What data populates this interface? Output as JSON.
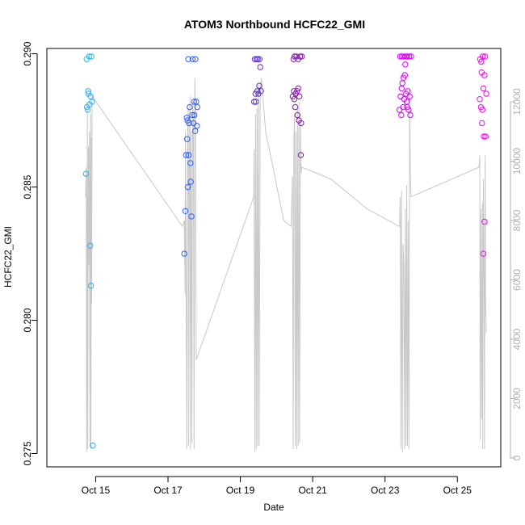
{
  "chart_data": {
    "type": "scatter",
    "title": "ATOM3 Northbound HCFC22_GMI",
    "xlabel": "Date",
    "ylabel": "HCFC22_GMI",
    "x_axis": {
      "min": 13.65,
      "max": 26.2,
      "ticks": [
        {
          "value": 15,
          "label": "Oct 15"
        },
        {
          "value": 17,
          "label": "Oct 17"
        },
        {
          "value": 19,
          "label": "Oct 19"
        },
        {
          "value": 21,
          "label": "Oct 21"
        },
        {
          "value": 23,
          "label": "Oct 23"
        },
        {
          "value": 25,
          "label": "Oct 25"
        }
      ]
    },
    "y_axis": {
      "min": 0.2745,
      "max": 0.2902,
      "ticks": [
        {
          "value": 0.275,
          "label": "0.275"
        },
        {
          "value": 0.28,
          "label": "0.280"
        },
        {
          "value": 0.285,
          "label": "0.285"
        },
        {
          "value": 0.29,
          "label": "0.290"
        }
      ]
    },
    "y2_axis": {
      "min": -300,
      "max": 13800,
      "ticks": [
        {
          "value": 0,
          "label": "0"
        },
        {
          "value": 2000,
          "label": "2000"
        },
        {
          "value": 4000,
          "label": "4000"
        },
        {
          "value": 6000,
          "label": "6000"
        },
        {
          "value": 8000,
          "label": "8000"
        },
        {
          "value": 10000,
          "label": "10000"
        },
        {
          "value": 12000,
          "label": "12000"
        }
      ]
    },
    "color_gradient": [
      "#29b6f6",
      "#2962ff",
      "#7b1fa2",
      "#d500f9",
      "#ff00ff"
    ],
    "altitude_color": "#c8c8c8",
    "flights": [
      {
        "points": [
          [
            14.73,
            0.2855
          ],
          [
            14.75,
            0.2898
          ],
          [
            14.78,
            0.2879
          ],
          [
            14.8,
            0.2885
          ],
          [
            14.82,
            0.2899
          ],
          [
            14.83,
            0.2881
          ],
          [
            14.85,
            0.2828
          ],
          [
            14.86,
            0.2884
          ],
          [
            14.87,
            0.2813
          ],
          [
            14.88,
            0.2899
          ],
          [
            14.9,
            0.2882
          ],
          [
            14.92,
            0.2753
          ],
          [
            14.76,
            0.288
          ],
          [
            14.79,
            0.2886
          ]
        ],
        "altitude": [
          [
            14.72,
            8800
          ],
          [
            14.74,
            9800
          ],
          [
            14.75,
            200
          ],
          [
            14.77,
            11800
          ],
          [
            14.78,
            300
          ],
          [
            14.8,
            10500
          ],
          [
            14.81,
            6500
          ],
          [
            14.83,
            11000
          ],
          [
            14.84,
            400
          ],
          [
            14.85,
            7200
          ],
          [
            14.86,
            11600
          ],
          [
            14.87,
            300
          ],
          [
            14.88,
            10800
          ],
          [
            14.89,
            5200
          ],
          [
            14.9,
            12200
          ]
        ]
      },
      {
        "points": [
          [
            17.45,
            0.2825
          ],
          [
            17.48,
            0.2841
          ],
          [
            17.5,
            0.2862
          ],
          [
            17.52,
            0.2876
          ],
          [
            17.53,
            0.2868
          ],
          [
            17.55,
            0.285
          ],
          [
            17.56,
            0.2898
          ],
          [
            17.58,
            0.2874
          ],
          [
            17.6,
            0.288
          ],
          [
            17.62,
            0.2859
          ],
          [
            17.63,
            0.2852
          ],
          [
            17.65,
            0.2839
          ],
          [
            17.67,
            0.2877
          ],
          [
            17.68,
            0.2898
          ],
          [
            17.7,
            0.2874
          ],
          [
            17.72,
            0.2882
          ],
          [
            17.73,
            0.2877
          ],
          [
            17.75,
            0.2871
          ],
          [
            17.76,
            0.2898
          ],
          [
            17.78,
            0.2882
          ],
          [
            17.8,
            0.2873
          ],
          [
            17.81,
            0.288
          ],
          [
            17.57,
            0.2862
          ],
          [
            17.54,
            0.2875
          ]
        ],
        "altitude": [
          [
            17.4,
            7800
          ],
          [
            17.45,
            8000
          ],
          [
            17.47,
            5500
          ],
          [
            17.48,
            11000
          ],
          [
            17.5,
            6000
          ],
          [
            17.52,
            300
          ],
          [
            17.54,
            10800
          ],
          [
            17.56,
            11800
          ],
          [
            17.57,
            400
          ],
          [
            17.59,
            9800
          ],
          [
            17.61,
            12200
          ],
          [
            17.62,
            300
          ],
          [
            17.64,
            11000
          ],
          [
            17.66,
            500
          ],
          [
            17.68,
            12000
          ],
          [
            17.7,
            11500
          ],
          [
            17.72,
            300
          ],
          [
            17.74,
            12800
          ],
          [
            17.76,
            11800
          ],
          [
            17.78,
            3300
          ]
        ]
      },
      {
        "points": [
          [
            19.38,
            0.2882
          ],
          [
            19.4,
            0.2898
          ],
          [
            19.42,
            0.2885
          ],
          [
            19.43,
            0.2882
          ],
          [
            19.45,
            0.2898
          ],
          [
            19.47,
            0.2886
          ],
          [
            19.48,
            0.2898
          ],
          [
            19.5,
            0.2885
          ],
          [
            19.52,
            0.2888
          ],
          [
            19.53,
            0.2898
          ],
          [
            19.55,
            0.2895
          ],
          [
            19.57,
            0.2886
          ]
        ],
        "altitude": [
          [
            19.37,
            8800
          ],
          [
            19.38,
            10400
          ],
          [
            19.4,
            200
          ],
          [
            19.42,
            11600
          ],
          [
            19.44,
            300
          ],
          [
            19.46,
            11800
          ],
          [
            19.48,
            400
          ],
          [
            19.5,
            12600
          ],
          [
            19.52,
            400
          ],
          [
            19.55,
            12400
          ],
          [
            19.58,
            12800
          ],
          [
            19.7,
            11000
          ],
          [
            20.2,
            8000
          ],
          [
            20.4,
            7800
          ]
        ]
      },
      {
        "points": [
          [
            20.45,
            0.2884
          ],
          [
            20.47,
            0.2898
          ],
          [
            20.48,
            0.2886
          ],
          [
            20.5,
            0.2899
          ],
          [
            20.52,
            0.288
          ],
          [
            20.53,
            0.2885
          ],
          [
            20.55,
            0.2899
          ],
          [
            20.57,
            0.2886
          ],
          [
            20.58,
            0.2877
          ],
          [
            20.6,
            0.2898
          ],
          [
            20.62,
            0.2875
          ],
          [
            20.63,
            0.2884
          ],
          [
            20.65,
            0.2899
          ],
          [
            20.67,
            0.2862
          ],
          [
            20.68,
            0.2874
          ],
          [
            20.7,
            0.2899
          ],
          [
            20.6,
            0.2887
          ],
          [
            20.49,
            0.2883
          ]
        ],
        "altitude": [
          [
            20.44,
            9500
          ],
          [
            20.46,
            300
          ],
          [
            20.48,
            10800
          ],
          [
            20.5,
            11600
          ],
          [
            20.52,
            400
          ],
          [
            20.54,
            11000
          ],
          [
            20.56,
            300
          ],
          [
            20.58,
            11800
          ],
          [
            20.6,
            400
          ],
          [
            20.62,
            12000
          ],
          [
            20.64,
            500
          ],
          [
            20.66,
            11400
          ],
          [
            20.68,
            9600
          ],
          [
            20.7,
            9800
          ],
          [
            21.5,
            9400
          ],
          [
            22.5,
            8400
          ],
          [
            23.4,
            7800
          ]
        ]
      },
      {
        "points": [
          [
            23.4,
            0.2879
          ],
          [
            23.42,
            0.2899
          ],
          [
            23.43,
            0.2884
          ],
          [
            23.45,
            0.2877
          ],
          [
            23.47,
            0.2899
          ],
          [
            23.48,
            0.2889
          ],
          [
            23.5,
            0.288
          ],
          [
            23.52,
            0.2899
          ],
          [
            23.53,
            0.2883
          ],
          [
            23.55,
            0.2892
          ],
          [
            23.57,
            0.2899
          ],
          [
            23.58,
            0.2885
          ],
          [
            23.6,
            0.2882
          ],
          [
            23.62,
            0.2899
          ],
          [
            23.63,
            0.2886
          ],
          [
            23.65,
            0.2879
          ],
          [
            23.67,
            0.2899
          ],
          [
            23.68,
            0.2884
          ],
          [
            23.7,
            0.2877
          ],
          [
            23.72,
            0.2899
          ],
          [
            23.46,
            0.2887
          ],
          [
            23.51,
            0.2891
          ],
          [
            23.56,
            0.2896
          ],
          [
            23.61,
            0.288
          ]
        ],
        "altitude": [
          [
            23.4,
            7800
          ],
          [
            23.42,
            8800
          ],
          [
            23.44,
            300
          ],
          [
            23.46,
            9000
          ],
          [
            23.48,
            200
          ],
          [
            23.5,
            7200
          ],
          [
            23.52,
            6400
          ],
          [
            23.54,
            300
          ],
          [
            23.56,
            8400
          ],
          [
            23.58,
            400
          ],
          [
            23.6,
            9200
          ],
          [
            23.62,
            400
          ],
          [
            23.64,
            8000
          ],
          [
            23.66,
            300
          ],
          [
            23.68,
            12400
          ],
          [
            23.7,
            9600
          ],
          [
            23.72,
            8800
          ],
          [
            25.6,
            9800
          ]
        ]
      },
      {
        "points": [
          [
            25.62,
            0.2883
          ],
          [
            25.63,
            0.2898
          ],
          [
            25.65,
            0.288
          ],
          [
            25.67,
            0.2893
          ],
          [
            25.68,
            0.2874
          ],
          [
            25.7,
            0.2899
          ],
          [
            25.72,
            0.2887
          ],
          [
            25.73,
            0.2869
          ],
          [
            25.75,
            0.2892
          ],
          [
            25.77,
            0.2899
          ],
          [
            25.78,
            0.2869
          ],
          [
            25.8,
            0.2885
          ],
          [
            25.72,
            0.2825
          ],
          [
            25.75,
            0.2837
          ],
          [
            25.66,
            0.2897
          ],
          [
            25.69,
            0.2879
          ]
        ],
        "altitude": [
          [
            25.6,
            9800
          ],
          [
            25.62,
            10200
          ],
          [
            25.63,
            600
          ],
          [
            25.65,
            8400
          ],
          [
            25.67,
            1300
          ],
          [
            25.69,
            8600
          ],
          [
            25.7,
            300
          ],
          [
            25.72,
            9400
          ],
          [
            25.74,
            5800
          ],
          [
            25.75,
            300
          ],
          [
            25.77,
            10200
          ],
          [
            25.78,
            5400
          ],
          [
            25.8,
            4200
          ]
        ]
      }
    ]
  }
}
